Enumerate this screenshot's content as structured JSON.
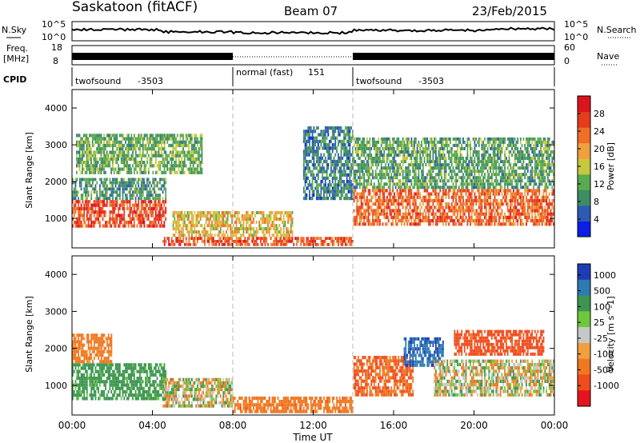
{
  "header": {
    "station": "Saskatoon (fitACF)",
    "beam": "Beam 07",
    "date": "23/Feb/2015"
  },
  "noise_panel": {
    "left_label": "N.Sky",
    "left_ticks": [
      "10^5",
      "10^0"
    ],
    "right_label": "N.Search",
    "right_ticks": [
      "10^5",
      "10^0"
    ]
  },
  "freq_panel": {
    "left_label_1": "Freq.",
    "left_label_2": "[MHz]",
    "left_ticks": [
      "18",
      "8"
    ],
    "right_label": "Nave",
    "right_ticks": [
      "60",
      "0"
    ]
  },
  "cpid_panel": {
    "label": "CPID",
    "segments": [
      {
        "name": "twofsound",
        "id": "-3503",
        "start_h": 0,
        "end_h": 8
      },
      {
        "name": "normal (fast)",
        "id": "151",
        "start_h": 8,
        "end_h": 14
      },
      {
        "name": "twofsound",
        "id": "-3503",
        "start_h": 14,
        "end_h": 24
      }
    ]
  },
  "time_axis": {
    "label": "Time UT",
    "ticks": [
      "00:00",
      "04:00",
      "08:00",
      "12:00",
      "16:00",
      "20:00",
      "00:00"
    ]
  },
  "power_panel": {
    "ylabel": "Slant Range [km]",
    "yticks": [
      "1000",
      "2000",
      "3000",
      "4000"
    ],
    "cbar_label": "Power [dB]",
    "cbar_ticks": [
      "4",
      "8",
      "12",
      "16",
      "20",
      "24",
      "28"
    ],
    "cbar_colors": [
      "#0a1ee6",
      "#2e5ab4",
      "#3c8c64",
      "#5aaa50",
      "#c8c83c",
      "#f0a03c",
      "#f06e28",
      "#e63c1e",
      "#dc141e"
    ]
  },
  "velocity_panel": {
    "ylabel": "Slant Range [km]",
    "yticks": [
      "1000",
      "2000",
      "3000",
      "4000"
    ],
    "cbar_label": "Velocity [m s^-1]",
    "cbar_ticks": [
      "1000",
      "500",
      "100",
      "25",
      "-25",
      "-100",
      "-500",
      "-1000"
    ],
    "cbar_colors": [
      "#1e3cb4",
      "#2e7ab4",
      "#3c9650",
      "#6ec83c",
      "#c8c8c8",
      "#f0a03c",
      "#f07820",
      "#f04c1e",
      "#e6141e"
    ]
  },
  "chart_data": [
    {
      "type": "heatmap",
      "title": "Power",
      "xlabel": "Time UT",
      "ylabel": "Slant Range [km]",
      "xlim": [
        0,
        24
      ],
      "ylim": [
        200,
        4500
      ],
      "colorbar": "Power [dB]",
      "bands": [
        {
          "x_start": 0.0,
          "x_end": 4.7,
          "range_lo": 750,
          "range_hi": 1500,
          "power": 26
        },
        {
          "x_start": 0.0,
          "x_end": 4.7,
          "range_lo": 1500,
          "range_hi": 2100,
          "power": 10
        },
        {
          "x_start": 0.2,
          "x_end": 6.5,
          "range_lo": 2200,
          "range_hi": 3300,
          "power": 12
        },
        {
          "x_start": 4.5,
          "x_end": 14.0,
          "range_lo": 250,
          "range_hi": 500,
          "power": 25
        },
        {
          "x_start": 5.0,
          "x_end": 11.0,
          "range_lo": 500,
          "range_hi": 1200,
          "power": 18
        },
        {
          "x_start": 11.5,
          "x_end": 14.0,
          "range_lo": 1500,
          "range_hi": 3500,
          "power": 8
        },
        {
          "x_start": 14.0,
          "x_end": 24.0,
          "range_lo": 800,
          "range_hi": 1800,
          "power": 24
        },
        {
          "x_start": 14.0,
          "x_end": 24.0,
          "range_lo": 1800,
          "range_hi": 3200,
          "power": 11
        }
      ]
    },
    {
      "type": "heatmap",
      "title": "Velocity",
      "xlabel": "Time UT",
      "ylabel": "Slant Range [km]",
      "xlim": [
        0,
        24
      ],
      "ylim": [
        200,
        4500
      ],
      "colorbar": "Velocity [m s^-1]",
      "bands": [
        {
          "x_start": 0.0,
          "x_end": 4.7,
          "range_lo": 600,
          "range_hi": 1600,
          "velocity": 150
        },
        {
          "x_start": 0.0,
          "x_end": 2.0,
          "range_lo": 1600,
          "range_hi": 2400,
          "velocity": -150
        },
        {
          "x_start": 4.5,
          "x_end": 8.0,
          "range_lo": 400,
          "range_hi": 1200,
          "velocity": 0
        },
        {
          "x_start": 8.0,
          "x_end": 14.0,
          "range_lo": 250,
          "range_hi": 700,
          "velocity": -200
        },
        {
          "x_start": 14.0,
          "x_end": 17.0,
          "range_lo": 700,
          "range_hi": 1800,
          "velocity": -300
        },
        {
          "x_start": 16.5,
          "x_end": 18.5,
          "range_lo": 1500,
          "range_hi": 2300,
          "velocity": 700
        },
        {
          "x_start": 18.0,
          "x_end": 24.0,
          "range_lo": 700,
          "range_hi": 1700,
          "velocity": 0
        },
        {
          "x_start": 19.0,
          "x_end": 23.5,
          "range_lo": 1800,
          "range_hi": 2500,
          "velocity": -400
        }
      ]
    }
  ]
}
